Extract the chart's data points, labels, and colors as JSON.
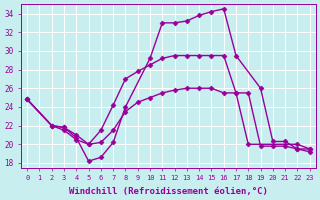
{
  "bg_color": "#c8eef0",
  "grid_color": "#b0dde0",
  "line_color": "#990099",
  "marker": "D",
  "markersize": 2.5,
  "linewidth": 1.0,
  "xlabel": "Windchill (Refroidissement éolien,°C)",
  "xlabel_fontsize": 6.5,
  "xtick_fontsize": 5.0,
  "ytick_fontsize": 5.5,
  "xlim": [
    -0.5,
    23.5
  ],
  "ylim": [
    17.5,
    35.0
  ],
  "yticks": [
    18,
    20,
    22,
    24,
    26,
    28,
    30,
    32,
    34
  ],
  "xticks": [
    0,
    1,
    2,
    3,
    4,
    5,
    6,
    7,
    8,
    9,
    10,
    11,
    12,
    13,
    14,
    15,
    16,
    17,
    18,
    19,
    20,
    21,
    22,
    23
  ],
  "line1_x": [
    0,
    2,
    3,
    4,
    5,
    6,
    7,
    8,
    10,
    11,
    12,
    13,
    14,
    15,
    16,
    17,
    19,
    20,
    21,
    22,
    23
  ],
  "line1_y": [
    24.8,
    22.0,
    21.8,
    20.7,
    18.2,
    18.6,
    20.2,
    24.0,
    29.2,
    33.0,
    33.0,
    33.2,
    33.8,
    34.2,
    34.5,
    29.5,
    26.0,
    20.3,
    20.3,
    19.5,
    19.5
  ],
  "line2_x": [
    0,
    2,
    3,
    4,
    5,
    6,
    7,
    8,
    9,
    10,
    11,
    12,
    13,
    14,
    15,
    16,
    17,
    18,
    19,
    20,
    21,
    22,
    23
  ],
  "line2_y": [
    24.8,
    22.0,
    21.8,
    21.0,
    20.0,
    21.5,
    24.2,
    27.0,
    27.8,
    28.5,
    29.2,
    29.5,
    29.5,
    29.5,
    29.5,
    29.5,
    25.5,
    25.5,
    19.8,
    19.8,
    19.8,
    19.5,
    19.2
  ],
  "line3_x": [
    0,
    2,
    3,
    4,
    5,
    6,
    7,
    8,
    9,
    10,
    11,
    12,
    13,
    14,
    15,
    16,
    17,
    18,
    22,
    23
  ],
  "line3_y": [
    24.8,
    22.0,
    21.5,
    20.5,
    20.0,
    20.2,
    21.5,
    23.5,
    24.5,
    25.0,
    25.5,
    25.8,
    26.0,
    26.0,
    26.0,
    25.5,
    25.5,
    20.0,
    20.0,
    19.5
  ]
}
